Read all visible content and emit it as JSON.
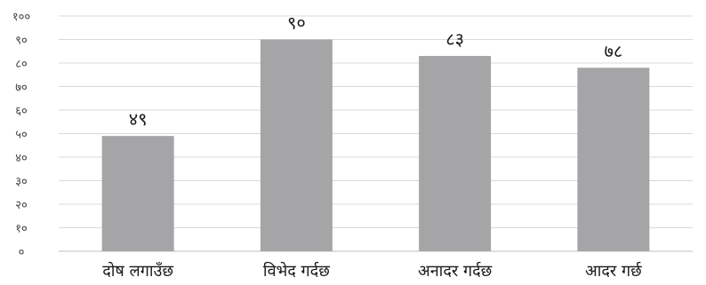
{
  "chart_data": {
    "type": "bar",
    "categories": [
      "दोष लगाउँछ",
      "विभेद गर्दछ",
      "अनादर गर्दछ",
      "आदर गर्छ"
    ],
    "values": [
      49,
      90,
      83,
      78
    ],
    "value_labels": [
      "४९",
      "९०",
      "८३",
      "७८"
    ],
    "ylim": [
      0,
      100
    ],
    "y_ticks": [
      0,
      10,
      20,
      30,
      40,
      50,
      60,
      70,
      80,
      90,
      100
    ],
    "y_tick_labels": [
      "०",
      "१०",
      "२०",
      "३०",
      "४०",
      "५०",
      "६०",
      "७०",
      "८०",
      "९०",
      "१००"
    ],
    "grid": true,
    "bar_color": "#a5a5a7",
    "title": "",
    "xlabel": "",
    "ylabel": ""
  }
}
